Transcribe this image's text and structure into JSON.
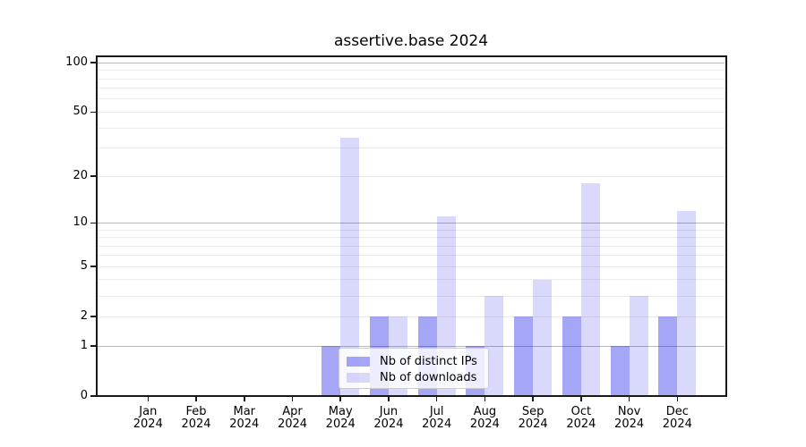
{
  "figure": {
    "title": "assertive.base 2024"
  },
  "chart_data": {
    "type": "bar",
    "title": "assertive.base 2024",
    "categories": [
      "Jan",
      "Feb",
      "Mar",
      "Apr",
      "May",
      "Jun",
      "Jul",
      "Aug",
      "Sep",
      "Oct",
      "Nov",
      "Dec"
    ],
    "category_year": "2024",
    "series": [
      {
        "name": "Nb of distinct IPs",
        "color": "rgba(22,22,235,0.38)",
        "values": [
          0,
          0,
          0,
          0,
          1,
          2,
          2,
          1,
          2,
          2,
          1,
          2
        ]
      },
      {
        "name": "Nb of downloads",
        "color": "rgba(22,22,235,0.165)",
        "values": [
          0,
          0,
          0,
          0,
          35,
          2,
          11,
          3,
          4,
          18,
          3,
          12
        ]
      }
    ],
    "xlabel": "",
    "ylabel": "",
    "y_ticks": [
      0,
      1,
      2,
      5,
      10,
      20,
      50,
      100
    ],
    "y_scale": "log10(1+value)",
    "ylim": [
      0,
      110
    ],
    "grid": {
      "major_values": [
        1,
        10,
        100
      ],
      "minor_values": [
        2,
        3,
        4,
        5,
        6,
        7,
        8,
        9,
        20,
        30,
        40,
        50,
        60,
        70,
        80,
        90
      ],
      "major_color": "#b9b9b9",
      "minor_color": "#ebebeb"
    },
    "legend_position": "lower center-left inside plot",
    "colors": {
      "distinct_ips_bar": "rgba(22,22,235,0.38)",
      "downloads_bar": "rgba(22,22,235,0.165)",
      "frame": "#191919",
      "background": "#ffffff"
    }
  }
}
